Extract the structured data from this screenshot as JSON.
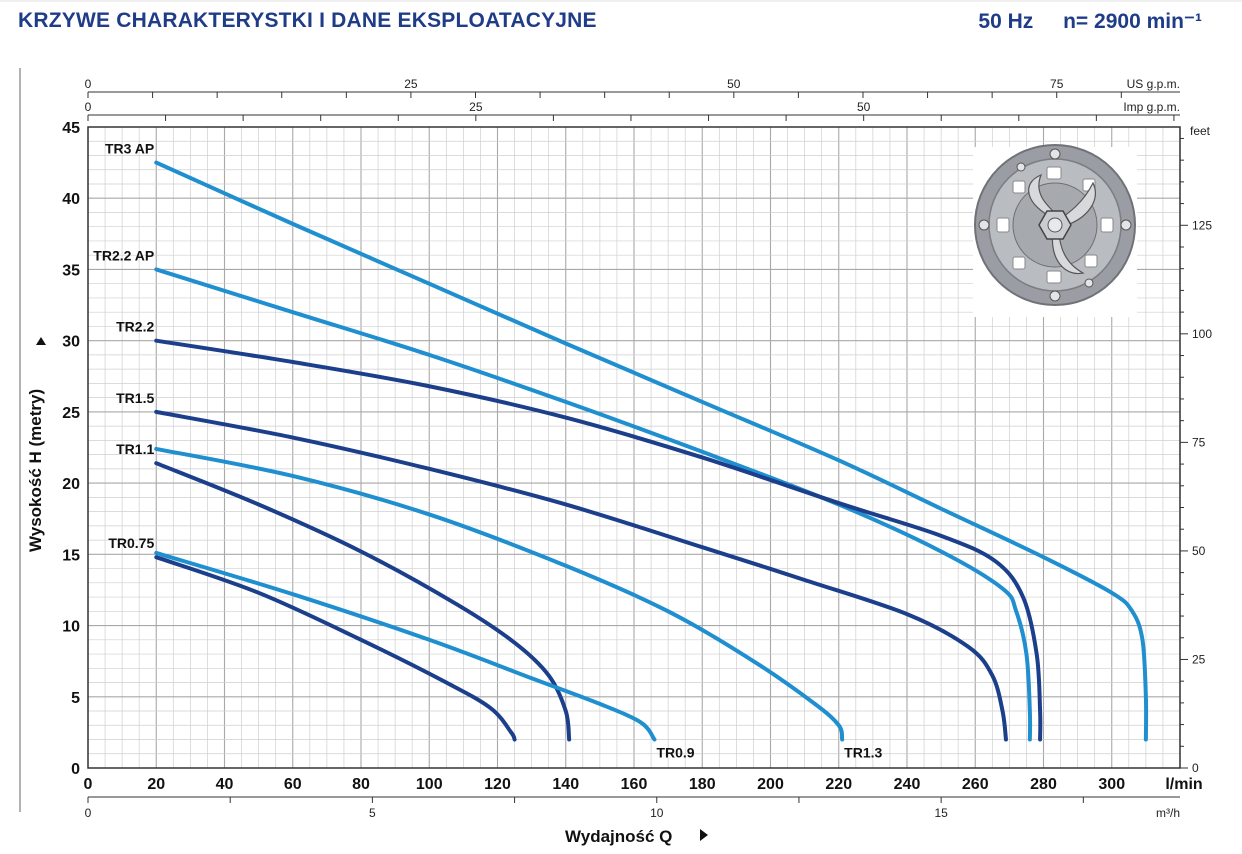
{
  "header": {
    "title": "KRZYWE CHARAKTERYSTKI I DANE EKSPLOATACYJNE",
    "freq": "50 Hz",
    "speed": "n= 2900 min⁻¹"
  },
  "chart_data": {
    "type": "line",
    "xlabel": "Wydajność Q",
    "ylabel": "Wysokość  H (metry)",
    "x_unit": "l/min",
    "y_unit_right": "feet",
    "xlim": [
      0,
      320
    ],
    "ylim": [
      0,
      45
    ],
    "x_ticks": [
      0,
      20,
      40,
      60,
      80,
      100,
      120,
      140,
      160,
      180,
      200,
      220,
      240,
      260,
      280,
      300
    ],
    "y_ticks": [
      0,
      5,
      10,
      15,
      20,
      25,
      30,
      35,
      40,
      45
    ],
    "secondary_axes": {
      "us_gpm": {
        "label": "US g.p.m.",
        "ticks": [
          0,
          25,
          50,
          75
        ]
      },
      "imp_gpm": {
        "label": "Imp g.p.m.",
        "ticks": [
          0,
          25,
          50
        ]
      },
      "m3h": {
        "label": "m³/h",
        "ticks": [
          0,
          5,
          10,
          15
        ]
      },
      "feet": {
        "label": "feet",
        "ticks": [
          0,
          25,
          50,
          75,
          100,
          125
        ]
      }
    },
    "grid": true,
    "series": [
      {
        "name": "TR3 AP",
        "color": "#1f8fcf",
        "points": [
          [
            20,
            42.5
          ],
          [
            60,
            38.2
          ],
          [
            100,
            34.0
          ],
          [
            140,
            29.8
          ],
          [
            180,
            25.7
          ],
          [
            220,
            21.6
          ],
          [
            250,
            18.2
          ],
          [
            280,
            14.8
          ],
          [
            300,
            12.3
          ],
          [
            306,
            11.0
          ],
          [
            309,
            9.0
          ],
          [
            310,
            5.0
          ],
          [
            310,
            2.0
          ]
        ]
      },
      {
        "name": "TR2.2 AP",
        "color": "#1f8fcf",
        "points": [
          [
            20,
            35.0
          ],
          [
            60,
            32.0
          ],
          [
            100,
            29.0
          ],
          [
            140,
            25.7
          ],
          [
            180,
            22.2
          ],
          [
            220,
            18.5
          ],
          [
            250,
            15.2
          ],
          [
            268,
            12.6
          ],
          [
            272,
            11.0
          ],
          [
            275,
            8.0
          ],
          [
            276,
            4.0
          ],
          [
            276,
            2.0
          ]
        ]
      },
      {
        "name": "TR2.2",
        "color": "#1c3f8c",
        "points": [
          [
            20,
            30.0
          ],
          [
            60,
            28.5
          ],
          [
            100,
            26.8
          ],
          [
            140,
            24.6
          ],
          [
            180,
            21.8
          ],
          [
            220,
            18.6
          ],
          [
            250,
            16.3
          ],
          [
            266,
            14.5
          ],
          [
            274,
            12.0
          ],
          [
            278,
            8.0
          ],
          [
            279,
            4.0
          ],
          [
            279,
            2.0
          ]
        ]
      },
      {
        "name": "TR1.5",
        "color": "#1c3f8c",
        "points": [
          [
            20,
            25.0
          ],
          [
            60,
            23.2
          ],
          [
            100,
            21.0
          ],
          [
            140,
            18.5
          ],
          [
            180,
            15.5
          ],
          [
            210,
            13.2
          ],
          [
            240,
            10.8
          ],
          [
            258,
            8.5
          ],
          [
            265,
            6.5
          ],
          [
            268,
            4.0
          ],
          [
            269,
            2.0
          ]
        ]
      },
      {
        "name": "TR1.3",
        "color": "#1f8fcf",
        "points": [
          [
            20,
            22.4
          ],
          [
            60,
            20.5
          ],
          [
            100,
            17.8
          ],
          [
            140,
            14.2
          ],
          [
            170,
            11.0
          ],
          [
            195,
            7.5
          ],
          [
            213,
            4.5
          ],
          [
            220,
            3.0
          ],
          [
            221,
            2.0
          ]
        ]
      },
      {
        "name": "TR1.1",
        "color": "#1c3f8c",
        "points": [
          [
            20,
            21.4
          ],
          [
            50,
            18.5
          ],
          [
            80,
            15.2
          ],
          [
            108,
            11.5
          ],
          [
            125,
            8.8
          ],
          [
            135,
            6.5
          ],
          [
            140,
            4.0
          ],
          [
            141,
            2.0
          ]
        ]
      },
      {
        "name": "TR0.9",
        "color": "#1f8fcf",
        "points": [
          [
            20,
            15.1
          ],
          [
            60,
            12.2
          ],
          [
            100,
            9.0
          ],
          [
            130,
            6.3
          ],
          [
            150,
            4.5
          ],
          [
            162,
            3.2
          ],
          [
            166,
            2.0
          ]
        ]
      },
      {
        "name": "TR0.75",
        "color": "#1c3f8c",
        "points": [
          [
            20,
            14.8
          ],
          [
            50,
            12.3
          ],
          [
            80,
            9.0
          ],
          [
            105,
            6.0
          ],
          [
            118,
            4.2
          ],
          [
            124,
            2.5
          ],
          [
            125,
            2.0
          ]
        ]
      }
    ]
  }
}
